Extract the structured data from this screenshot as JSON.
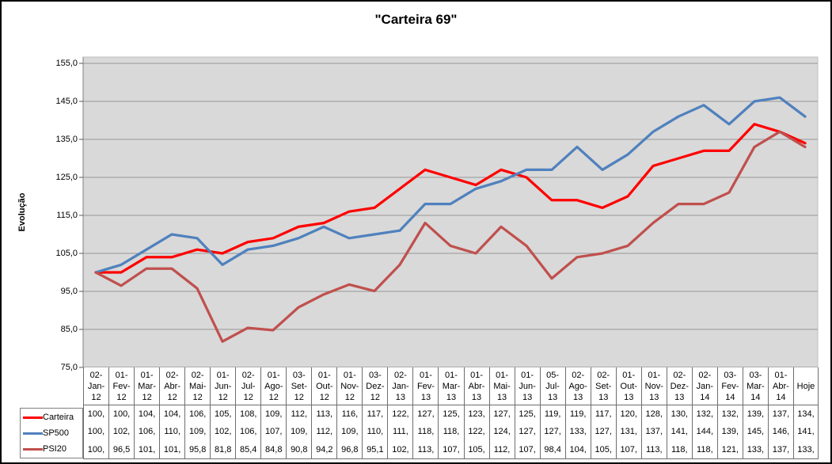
{
  "chart_data": {
    "type": "line",
    "title": "\"Carteira 69\"",
    "ylabel": "Evolução",
    "xlabel": "",
    "ylim": [
      75,
      156.7
    ],
    "ytick_step": 10,
    "ytick_labels": [
      "155,0",
      "145,0",
      "135,0",
      "125,0",
      "115,0",
      "105,0",
      "95,0",
      "85,0",
      "75,0"
    ],
    "grid": true,
    "legend_position": "bottom-left",
    "plot_bg_color": "#D9D9D9",
    "gridline_color": "#969696",
    "categories": [
      "02-Jan-12",
      "01-Fev-12",
      "01-Mar-12",
      "02-Abr-12",
      "02-Mai-12",
      "01-Jun-12",
      "02-Jul-12",
      "01-Ago-12",
      "03-Set-12",
      "01-Out-12",
      "01-Nov-12",
      "03-Dez-12",
      "02-Jan-13",
      "01-Fev-13",
      "01-Mar-13",
      "01-Abr-13",
      "01-Mai-13",
      "01-Jun-13",
      "05-Jul-13",
      "02-Ago-13",
      "02-Set-13",
      "01-Out-13",
      "01-Nov-13",
      "02-Dez-13",
      "02-Jan-14",
      "03-Fev-14",
      "03-Mar-14",
      "01-Abr-14",
      "Hoje"
    ],
    "series": [
      {
        "name": "Carteira",
        "color": "#FF0000",
        "values": [
          100,
          100,
          104,
          104,
          106,
          105,
          108,
          109,
          112,
          113,
          116,
          117,
          122,
          127,
          125,
          123,
          127,
          125,
          119,
          119,
          117,
          120,
          128,
          130,
          132,
          132,
          139,
          137,
          134
        ],
        "cells": [
          "100,",
          "100,",
          "104,",
          "104,",
          "106,",
          "105,",
          "108,",
          "109,",
          "112,",
          "113,",
          "116,",
          "117,",
          "122,",
          "127,",
          "125,",
          "123,",
          "127,",
          "125,",
          "119,",
          "119,",
          "117,",
          "120,",
          "128,",
          "130,",
          "132,",
          "132,",
          "139,",
          "137,",
          "134,"
        ]
      },
      {
        "name": "SP500",
        "color": "#4F81BD",
        "values": [
          100,
          102,
          106,
          110,
          109,
          102,
          106,
          107,
          109,
          112,
          109,
          110,
          111,
          118,
          118,
          122,
          124,
          127,
          127,
          133,
          127,
          131,
          137,
          141,
          144,
          139,
          145,
          146,
          141
        ],
        "cells": [
          "100,",
          "102,",
          "106,",
          "110,",
          "109,",
          "102,",
          "106,",
          "107,",
          "109,",
          "112,",
          "109,",
          "110,",
          "111,",
          "118,",
          "118,",
          "122,",
          "124,",
          "127,",
          "127,",
          "133,",
          "127,",
          "131,",
          "137,",
          "141,",
          "144,",
          "139,",
          "145,",
          "146,",
          "141,"
        ]
      },
      {
        "name": "PSI20",
        "color": "#C0504D",
        "values": [
          100,
          96.5,
          101,
          101,
          95.8,
          81.8,
          85.4,
          84.8,
          90.8,
          94.2,
          96.8,
          95.1,
          102,
          113,
          107,
          105,
          112,
          107,
          98.4,
          104,
          105,
          107,
          113,
          118,
          118,
          121,
          133,
          137,
          133
        ],
        "cells": [
          "100,",
          "96,5",
          "101,",
          "101,",
          "95,8",
          "81,8",
          "85,4",
          "84,8",
          "90,8",
          "94,2",
          "96,8",
          "95,1",
          "102,",
          "113,",
          "107,",
          "105,",
          "112,",
          "107,",
          "98,4",
          "104,",
          "105,",
          "107,",
          "113,",
          "118,",
          "118,",
          "121,",
          "133,",
          "137,",
          "133,"
        ]
      }
    ]
  }
}
